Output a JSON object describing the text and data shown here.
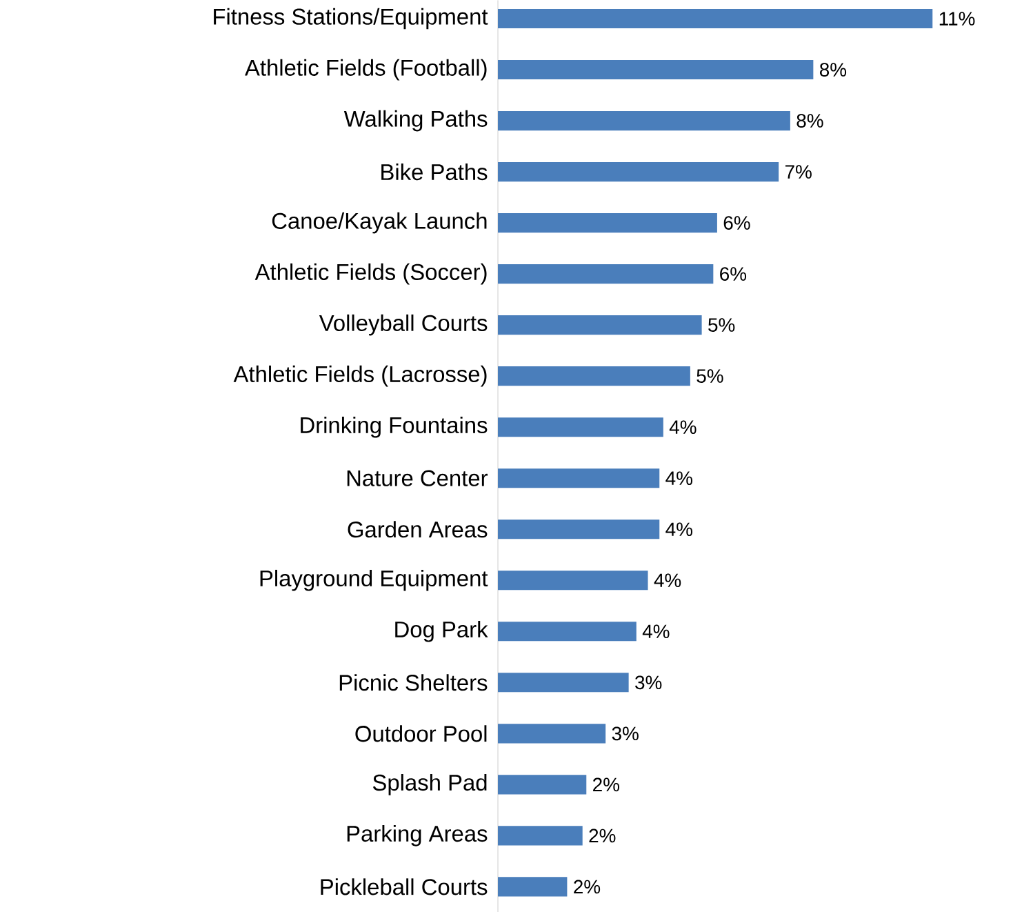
{
  "chart_data": {
    "type": "bar",
    "orientation": "horizontal",
    "categories": [
      "Fitness Stations/Equipment",
      "Athletic Fields (Football)",
      "Walking Paths",
      "Bike Paths",
      "Canoe/Kayak Launch",
      "Athletic Fields (Soccer)",
      "Volleyball Courts",
      "Athletic Fields (Lacrosse)",
      "Drinking Fountains",
      "Nature Center",
      "Garden Areas",
      "Playground Equipment",
      "Dog Park",
      "Picnic Shelters",
      "Outdoor Pool",
      "Splash Pad",
      "Parking Areas",
      "Pickleball Courts"
    ],
    "values": [
      11.3,
      8.2,
      7.6,
      7.3,
      5.7,
      5.6,
      5.3,
      5.0,
      4.3,
      4.2,
      4.2,
      3.9,
      3.6,
      3.4,
      2.8,
      2.3,
      2.2,
      1.8
    ],
    "value_labels": [
      "11%",
      "8%",
      "8%",
      "7%",
      "6%",
      "6%",
      "5%",
      "5%",
      "4%",
      "4%",
      "4%",
      "4%",
      "4%",
      "3%",
      "3%",
      "2%",
      "2%",
      "2%"
    ],
    "color": "#4a7ebb",
    "tick_labels": "y"
  }
}
